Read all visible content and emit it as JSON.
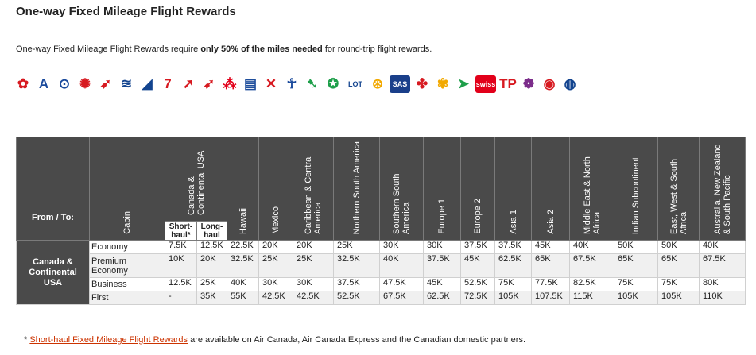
{
  "page": {
    "title": "One-way Fixed Mileage Flight Rewards",
    "intro_before": "One-way Fixed Mileage Flight Rewards require ",
    "intro_bold": "only 50% of the miles needed",
    "intro_after": " for round-trip flight rewards."
  },
  "logos": [
    {
      "name": "air-canada-logo",
      "glyph": "✿",
      "color": "#d71920",
      "bg": "#fff"
    },
    {
      "name": "aegean-logo",
      "glyph": "A",
      "color": "#1a4a9c",
      "bg": "#fff"
    },
    {
      "name": "air-new-zealand-logo",
      "glyph": "⊙",
      "color": "#1a4a9c",
      "bg": "#fff"
    },
    {
      "name": "air-china-logo",
      "glyph": "✺",
      "color": "#d71920",
      "bg": "#fff"
    },
    {
      "name": "air-india-logo",
      "glyph": "➶",
      "color": "#d71920",
      "bg": "#fff"
    },
    {
      "name": "all-nippon-logo",
      "glyph": "≋",
      "color": "#13448f",
      "bg": "#fff"
    },
    {
      "name": "ana-logo",
      "glyph": "◢",
      "color": "#13448f",
      "bg": "#fff"
    },
    {
      "name": "asiana-logo",
      "glyph": "7",
      "color": "#d71920",
      "bg": "#fff"
    },
    {
      "name": "austrian-logo",
      "glyph": "➚",
      "color": "#d71920",
      "bg": "#fff"
    },
    {
      "name": "avianca-logo",
      "glyph": "➹",
      "color": "#d71920",
      "bg": "#fff"
    },
    {
      "name": "brussels-logo",
      "glyph": "⁂",
      "color": "#e2001a",
      "bg": "#fff"
    },
    {
      "name": "copa-logo",
      "glyph": "▤",
      "color": "#1f4e9c",
      "bg": "#fff"
    },
    {
      "name": "croatia-logo",
      "glyph": "✕",
      "color": "#d71920",
      "bg": "#fff"
    },
    {
      "name": "egyptair-logo",
      "glyph": "☥",
      "color": "#1a4a9c",
      "bg": "#fff"
    },
    {
      "name": "ethiopian-logo",
      "glyph": "➷",
      "color": "#1e9f4a",
      "bg": "#fff"
    },
    {
      "name": "eva-air-logo",
      "glyph": "✪",
      "color": "#1e9f4a",
      "bg": "#fff"
    },
    {
      "name": "lot-logo",
      "glyph": "LOT",
      "color": "#13448f",
      "bg": "#fff"
    },
    {
      "name": "lufthansa-logo",
      "glyph": "⊛",
      "color": "#f2a900",
      "bg": "#fff"
    },
    {
      "name": "sas-logo",
      "glyph": "SAS",
      "color": "#fff",
      "bg": "#1a3f8a"
    },
    {
      "name": "shenzhen-logo",
      "glyph": "✤",
      "color": "#d71920",
      "bg": "#fff"
    },
    {
      "name": "singapore-logo",
      "glyph": "✾",
      "color": "#f2a900",
      "bg": "#fff"
    },
    {
      "name": "south-african-logo",
      "glyph": "➤",
      "color": "#1e9f4a",
      "bg": "#fff"
    },
    {
      "name": "swiss-logo",
      "glyph": "swiss",
      "color": "#fff",
      "bg": "#e2001a"
    },
    {
      "name": "tap-logo",
      "glyph": "TP",
      "color": "#d71920",
      "bg": "#fff"
    },
    {
      "name": "thai-logo",
      "glyph": "❁",
      "color": "#7b2c8a",
      "bg": "#fff"
    },
    {
      "name": "turkish-logo",
      "glyph": "◉",
      "color": "#d71920",
      "bg": "#fff"
    },
    {
      "name": "united-logo",
      "glyph": "◍",
      "color": "#13448f",
      "bg": "#fff"
    }
  ],
  "table": {
    "from_to": "From / To:",
    "cabin": "Cabin",
    "canada_header": "Canada & Continental USA",
    "sub_short": "Short-haul*",
    "sub_long": "Long-haul",
    "destinations": [
      "Hawaii",
      "Mexico",
      "Caribbean & Central America",
      "Northern South America",
      "Southern South America",
      "Europe 1",
      "Europe 2",
      "Asia 1",
      "Asia 2",
      "Middle East & North Africa",
      "Indian Subcontinent",
      "East, West & South Africa",
      "Australia, New Zealand & South Pacific"
    ],
    "region": "Canada & Continental USA",
    "rows": [
      {
        "cabin": "Economy",
        "values": [
          "7.5K",
          "12.5K",
          "22.5K",
          "20K",
          "20K",
          "25K",
          "30K",
          "30K",
          "37.5K",
          "37.5K",
          "45K",
          "40K",
          "50K",
          "50K",
          "40K"
        ]
      },
      {
        "cabin": "Premium Economy",
        "values": [
          "10K",
          "20K",
          "32.5K",
          "25K",
          "25K",
          "32.5K",
          "40K",
          "37.5K",
          "45K",
          "62.5K",
          "65K",
          "67.5K",
          "65K",
          "65K",
          "67.5K"
        ]
      },
      {
        "cabin": "Business",
        "values": [
          "12.5K",
          "25K",
          "40K",
          "30K",
          "30K",
          "37.5K",
          "47.5K",
          "45K",
          "52.5K",
          "75K",
          "77.5K",
          "82.5K",
          "75K",
          "75K",
          "80K"
        ]
      },
      {
        "cabin": "First",
        "values": [
          "-",
          "35K",
          "55K",
          "42.5K",
          "42.5K",
          "52.5K",
          "67.5K",
          "62.5K",
          "72.5K",
          "105K",
          "107.5K",
          "115K",
          "105K",
          "105K",
          "110K"
        ]
      }
    ]
  },
  "footnote": {
    "star": "* ",
    "link": "Short-haul Fixed Mileage Flight Rewards",
    "rest": " are available on Air Canada, Air Canada Express and the Canadian domestic partners."
  }
}
